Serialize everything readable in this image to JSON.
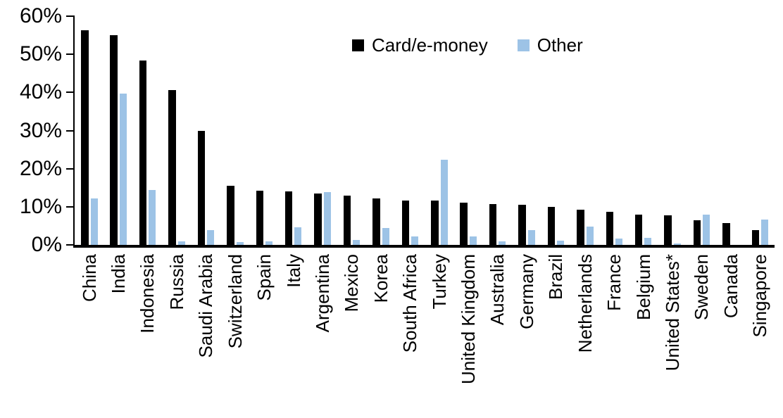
{
  "chart_data": {
    "type": "bar",
    "title": "",
    "xlabel": "",
    "ylabel": "",
    "ylim": [
      0,
      60
    ],
    "ytick_step": 10,
    "ytick_labels": [
      "0%",
      "10%",
      "20%",
      "30%",
      "40%",
      "50%",
      "60%"
    ],
    "grid": false,
    "legend_position": "top-center",
    "categories": [
      "China",
      "India",
      "Indonesia",
      "Russia",
      "Saudi Arabia",
      "Switzerland",
      "Spain",
      "Italy",
      "Argentina",
      "Mexico",
      "Korea",
      "South Africa",
      "Turkey",
      "United Kingdom",
      "Australia",
      "Germany",
      "Brazil",
      "Netherlands",
      "France",
      "Belgium",
      "United States*",
      "Sweden",
      "Canada",
      "Singapore"
    ],
    "series": [
      {
        "name": "Card/e-money",
        "color": "#000000",
        "values": [
          56.4,
          55.0,
          48.3,
          40.6,
          29.9,
          15.6,
          14.2,
          14.1,
          13.4,
          12.9,
          12.2,
          11.7,
          11.6,
          11.0,
          10.8,
          10.5,
          10.0,
          9.2,
          8.7,
          8.0,
          7.8,
          6.5,
          5.8,
          3.8
        ]
      },
      {
        "name": "Other",
        "color": "#9DC3E6",
        "values": [
          12.2,
          39.7,
          14.5,
          0.9,
          3.8,
          0.7,
          1.0,
          4.6,
          13.8,
          1.3,
          4.5,
          2.2,
          22.4,
          2.3,
          1.0,
          3.9,
          1.2,
          4.8,
          1.6,
          1.8,
          0.3,
          8.0,
          0.0,
          6.6
        ]
      }
    ]
  }
}
